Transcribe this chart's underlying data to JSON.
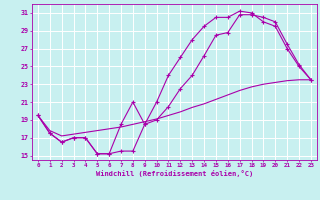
{
  "title": "",
  "xlabel": "Windchill (Refroidissement éolien,°C)",
  "ylabel": "",
  "bg_color": "#c8f0f0",
  "line_color": "#aa00aa",
  "grid_color": "#ffffff",
  "xlim": [
    -0.5,
    23.5
  ],
  "ylim": [
    14.5,
    32.0
  ],
  "xticks": [
    0,
    1,
    2,
    3,
    4,
    5,
    6,
    7,
    8,
    9,
    10,
    11,
    12,
    13,
    14,
    15,
    16,
    17,
    18,
    19,
    20,
    21,
    22,
    23
  ],
  "yticks": [
    15,
    17,
    19,
    21,
    23,
    25,
    27,
    29,
    31
  ],
  "line1_x": [
    0,
    1,
    2,
    3,
    4,
    5,
    6,
    7,
    8,
    9,
    10,
    11,
    12,
    13,
    14,
    15,
    16,
    17,
    18,
    19,
    20,
    21,
    22,
    23
  ],
  "line1_y": [
    19.5,
    17.5,
    16.5,
    17.0,
    17.0,
    15.2,
    15.2,
    18.5,
    21.0,
    18.5,
    19.0,
    20.5,
    22.5,
    24.0,
    26.2,
    28.5,
    28.8,
    30.8,
    30.8,
    30.5,
    30.0,
    27.5,
    25.2,
    23.5
  ],
  "line2_x": [
    0,
    1,
    2,
    3,
    4,
    5,
    6,
    7,
    8,
    9,
    10,
    11,
    12,
    13,
    14,
    15,
    16,
    17,
    18,
    19,
    20,
    21,
    22,
    23
  ],
  "line2_y": [
    19.5,
    17.5,
    16.5,
    17.0,
    17.0,
    15.2,
    15.2,
    15.5,
    15.5,
    18.5,
    21.0,
    24.0,
    26.0,
    28.0,
    29.5,
    30.5,
    30.5,
    31.2,
    31.0,
    30.0,
    29.5,
    27.0,
    25.0,
    23.5
  ],
  "line3_x": [
    0,
    1,
    2,
    3,
    4,
    5,
    6,
    7,
    8,
    9,
    10,
    11,
    12,
    13,
    14,
    15,
    16,
    17,
    18,
    19,
    20,
    21,
    22,
    23
  ],
  "line3_y": [
    19.5,
    17.8,
    17.2,
    17.4,
    17.6,
    17.8,
    18.0,
    18.2,
    18.5,
    18.8,
    19.1,
    19.5,
    19.9,
    20.4,
    20.8,
    21.3,
    21.8,
    22.3,
    22.7,
    23.0,
    23.2,
    23.4,
    23.5,
    23.5
  ]
}
